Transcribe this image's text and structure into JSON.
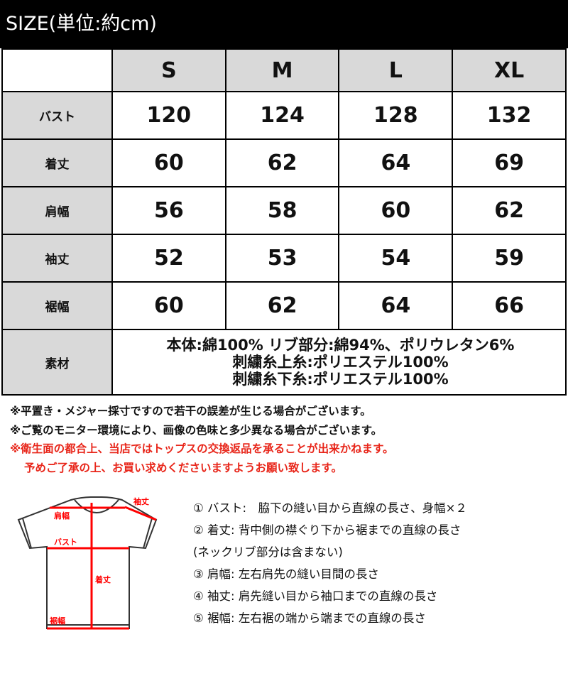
{
  "title": "SIZE(単位:約cm)",
  "table": {
    "columns": [
      "S",
      "M",
      "L",
      "XL"
    ],
    "rows": [
      {
        "label": "バスト",
        "values": [
          "120",
          "124",
          "128",
          "132"
        ]
      },
      {
        "label": "着丈",
        "values": [
          "60",
          "62",
          "64",
          "69"
        ]
      },
      {
        "label": "肩幅",
        "values": [
          "56",
          "58",
          "60",
          "62"
        ]
      },
      {
        "label": "袖丈",
        "values": [
          "52",
          "53",
          "54",
          "59"
        ]
      },
      {
        "label": "裾幅",
        "values": [
          "60",
          "62",
          "64",
          "66"
        ]
      }
    ],
    "material": {
      "label": "素材",
      "lines": [
        "本体:綿100% リブ部分:綿94%、ポリウレタン6%",
        "刺繍糸上糸:ポリエステル100%",
        "刺繍糸下糸:ポリエステル100%"
      ]
    }
  },
  "notes": [
    "※平置き・メジャー採寸ですので若干の誤差が生じる場合がございます。",
    "※ご覧のモニター環境により、画像の色味と多少異なる場合がございます。"
  ],
  "red_notes": [
    "※衛生面の都合上、当店ではトップスの交換返品を承ることが出来かねます。",
    "予めご了承の上、お買い求めくださいますようお願い致します。"
  ],
  "diagram": {
    "labels": {
      "shoulder": "肩幅",
      "sleeve": "袖丈",
      "bust": "バスト",
      "length": "着丈",
      "hem": "裾幅"
    },
    "accent": "#ff0000"
  },
  "legend": [
    "① バスト:　脇下の縫い目から直線の長さ、身幅×２",
    "② 着丈:  背中側の襟ぐり下から裾までの直線の長さ",
    "(ネックリブ部分は含まない)",
    "③ 肩幅:  左右肩先の縫い目間の長さ",
    "④ 袖丈:  肩先縫い目から袖口までの直線の長さ",
    "⑤ 裾幅:  左右裾の端から端までの直線の長さ"
  ]
}
